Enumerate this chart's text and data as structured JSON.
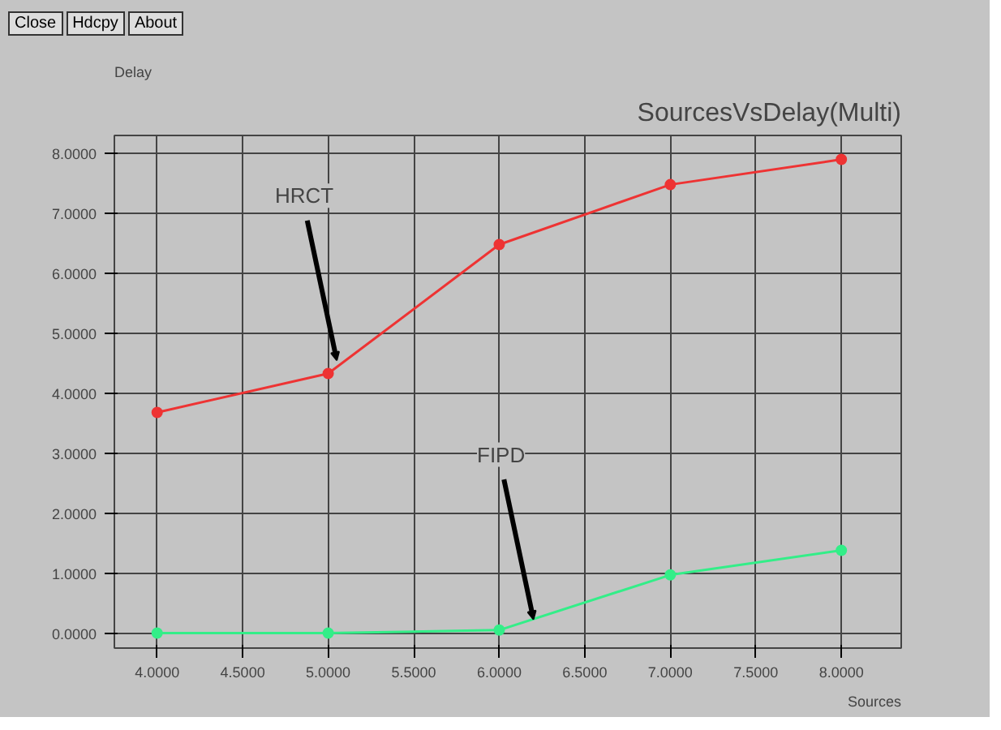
{
  "chart_data": {
    "type": "line",
    "title": "SourcesVsDelay(Multi)",
    "xlabel": "Sources",
    "ylabel": "Delay",
    "x": [
      4,
      5,
      6,
      7,
      8
    ],
    "series": [
      {
        "color": "#ee3333",
        "values": [
          3.68,
          4.33,
          6.48,
          7.48,
          7.9
        ]
      },
      {
        "color": "#33ee88",
        "values": [
          0.0,
          0.0,
          0.05,
          0.97,
          1.38
        ]
      }
    ],
    "marker": "circle",
    "grid": true,
    "xlim": [
      3.75,
      8.35
    ],
    "ylim": [
      -0.25,
      8.3
    ],
    "xticks": [
      {
        "value": 4,
        "label": "4.0000"
      },
      {
        "value": 4.5,
        "label": "4.5000"
      },
      {
        "value": 5,
        "label": "5.0000"
      },
      {
        "value": 5.5,
        "label": "5.5000"
      },
      {
        "value": 6,
        "label": "6.0000"
      },
      {
        "value": 6.5,
        "label": "6.5000"
      },
      {
        "value": 7,
        "label": "7.0000"
      },
      {
        "value": 7.5,
        "label": "7.5000"
      },
      {
        "value": 8,
        "label": "8.0000"
      }
    ],
    "yticks": [
      {
        "value": 0,
        "label": "0.0000"
      },
      {
        "value": 1,
        "label": "1.0000"
      },
      {
        "value": 2,
        "label": "2.0000"
      },
      {
        "value": 3,
        "label": "3.0000"
      },
      {
        "value": 4,
        "label": "4.0000"
      },
      {
        "value": 5,
        "label": "5.0000"
      },
      {
        "value": 6,
        "label": "6.0000"
      },
      {
        "value": 7,
        "label": "7.0000"
      },
      {
        "value": 8,
        "label": "8.0000"
      }
    ],
    "annotations": [
      "Close",
      "Hdcpy",
      "About",
      {
        "text": "HRCT",
        "x": 5.05,
        "y": 4.55
      },
      {
        "text": "FIPD",
        "x": 6.2,
        "y": 0.23
      }
    ]
  }
}
